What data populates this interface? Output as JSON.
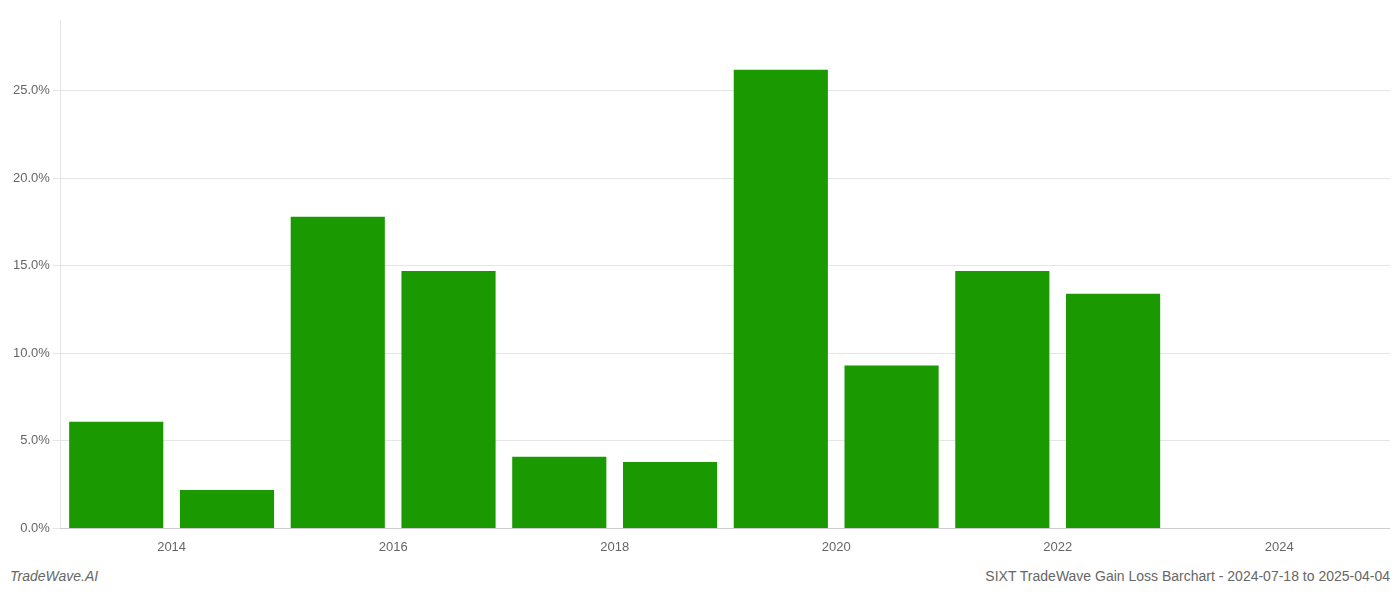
{
  "chart_data": {
    "type": "bar",
    "title": "SIXT TradeWave Gain Loss Barchart - 2024-07-18 to 2025-04-04",
    "annotations": [
      "TradeWave.AI"
    ],
    "x": [
      2013.5,
      2014.5,
      2015.5,
      2016.5,
      2017.5,
      2018.5,
      2019.5,
      2020.5,
      2021.5,
      2022.5,
      2023.5
    ],
    "values": [
      0.061,
      0.022,
      0.178,
      0.147,
      0.041,
      0.038,
      0.262,
      0.093,
      0.147,
      0.134,
      0.0
    ],
    "color": "#1a9a00",
    "xlim": [
      2013.0,
      2025.0
    ],
    "xticks": [
      2014,
      2016,
      2018,
      2020,
      2022,
      2024
    ],
    "ylim": [
      0,
      0.29
    ],
    "yticks": [
      {
        "value": 0.0,
        "label": "0.0%"
      },
      {
        "value": 0.05,
        "label": "5.0%"
      },
      {
        "value": 0.1,
        "label": "10.0%"
      },
      {
        "value": 0.15,
        "label": "15.0%"
      },
      {
        "value": 0.2,
        "label": "20.0%"
      },
      {
        "value": 0.25,
        "label": "25.0%"
      }
    ],
    "grid": true
  }
}
